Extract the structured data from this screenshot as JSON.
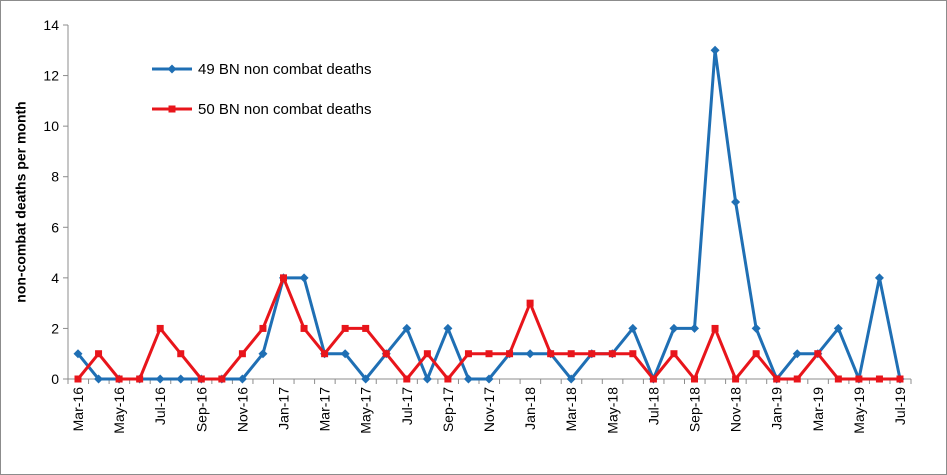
{
  "chart_data": {
    "type": "line",
    "title": "",
    "xlabel": "",
    "ylabel": "non-combat deaths per month",
    "ylim": [
      0,
      14
    ],
    "yticks": [
      0,
      2,
      4,
      6,
      8,
      10,
      12,
      14
    ],
    "grid": false,
    "legend_position": "top-left",
    "x": [
      "Mar-16",
      "Apr-16",
      "May-16",
      "Jun-16",
      "Jul-16",
      "Aug-16",
      "Sep-16",
      "Oct-16",
      "Nov-16",
      "Dec-16",
      "Jan-17",
      "Feb-17",
      "Mar-17",
      "Apr-17",
      "May-17",
      "Jun-17",
      "Jul-17",
      "Aug-17",
      "Sep-17",
      "Oct-17",
      "Nov-17",
      "Dec-17",
      "Jan-18",
      "Feb-18",
      "Mar-18",
      "Apr-18",
      "May-18",
      "Jun-18",
      "Jul-18",
      "Aug-18",
      "Sep-18",
      "Oct-18",
      "Nov-18",
      "Dec-18",
      "Jan-19",
      "Feb-19",
      "Mar-19",
      "Apr-19",
      "May-19",
      "Jun-19",
      "Jul-19"
    ],
    "tick_labels": [
      "Mar-16",
      "May-16",
      "Jul-16",
      "Sep-16",
      "Nov-16",
      "Jan-17",
      "Mar-17",
      "May-17",
      "Jul-17",
      "Sep-17",
      "Nov-17",
      "Jan-18",
      "Mar-18",
      "May-18",
      "Jul-18",
      "Sep-18",
      "Nov-18",
      "Jan-19",
      "Mar-19",
      "May-19",
      "Jul-19"
    ],
    "series": [
      {
        "name": "49 BN non combat deaths",
        "color": "#1f6fb4",
        "marker": "diamond",
        "values": [
          1,
          0,
          0,
          0,
          0,
          0,
          0,
          0,
          0,
          1,
          4,
          4,
          1,
          1,
          0,
          1,
          2,
          0,
          2,
          0,
          0,
          1,
          1,
          1,
          0,
          1,
          1,
          2,
          0,
          2,
          2,
          13,
          7,
          2,
          0,
          1,
          1,
          2,
          0,
          4,
          0
        ]
      },
      {
        "name": "50 BN non combat deaths",
        "color": "#e8151b",
        "marker": "square",
        "values": [
          0,
          1,
          0,
          0,
          2,
          1,
          0,
          0,
          1,
          2,
          4,
          2,
          1,
          2,
          2,
          1,
          0,
          1,
          0,
          1,
          1,
          1,
          3,
          1,
          1,
          1,
          1,
          1,
          0,
          1,
          0,
          2,
          0,
          1,
          0,
          0,
          1,
          0,
          0,
          0,
          0
        ]
      }
    ]
  }
}
